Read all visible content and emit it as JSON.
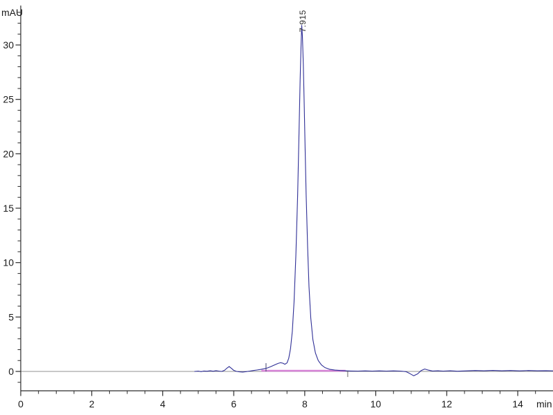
{
  "window": {
    "background": "#ffffff"
  },
  "chart_data": {
    "type": "line",
    "title": "",
    "subtitle": "",
    "ylabel": "mAU",
    "xlabel": "min",
    "legend_position": "none",
    "grid": "zero-line-only",
    "x_axis": {
      "range": [
        0,
        15.05
      ],
      "major_ticks": [
        0,
        2,
        4,
        6,
        8,
        10,
        12,
        14
      ],
      "minor_tick_step": 0.5,
      "unit_label": "min"
    },
    "y_axis": {
      "range": [
        -1.8,
        33.6
      ],
      "major_ticks": [
        0,
        5,
        10,
        15,
        20,
        25,
        30
      ],
      "minor_tick_step": 1,
      "minor_tick_range": [
        -1,
        33
      ],
      "unit_label": "mAU"
    },
    "peak": {
      "label": "7.915",
      "retention_time_min": 7.915,
      "apex_mAU": 31.8
    },
    "integration": {
      "baseline_start_min": 6.78,
      "baseline_end_min": 9.15,
      "baseline_level_mAU": 0.06,
      "start_tick_min": 6.91,
      "end_tick_min": 9.21
    },
    "series": [
      {
        "name": "detector-signal",
        "color": "#2e2e96",
        "points": [
          [
            4.9,
            0.0
          ],
          [
            5.0,
            0.03
          ],
          [
            5.08,
            -0.02
          ],
          [
            5.16,
            0.04
          ],
          [
            5.25,
            0.02
          ],
          [
            5.34,
            0.06
          ],
          [
            5.42,
            0.02
          ],
          [
            5.5,
            0.07
          ],
          [
            5.58,
            0.03
          ],
          [
            5.66,
            0.0
          ],
          [
            5.74,
            0.1
          ],
          [
            5.8,
            0.28
          ],
          [
            5.87,
            0.45
          ],
          [
            5.93,
            0.3
          ],
          [
            6.0,
            0.1
          ],
          [
            6.08,
            0.0
          ],
          [
            6.16,
            -0.04
          ],
          [
            6.25,
            -0.06
          ],
          [
            6.35,
            -0.02
          ],
          [
            6.45,
            0.03
          ],
          [
            6.55,
            0.08
          ],
          [
            6.65,
            0.13
          ],
          [
            6.75,
            0.18
          ],
          [
            6.85,
            0.24
          ],
          [
            6.95,
            0.32
          ],
          [
            7.05,
            0.45
          ],
          [
            7.15,
            0.6
          ],
          [
            7.25,
            0.74
          ],
          [
            7.32,
            0.8
          ],
          [
            7.38,
            0.76
          ],
          [
            7.44,
            0.66
          ],
          [
            7.5,
            0.78
          ],
          [
            7.55,
            1.2
          ],
          [
            7.6,
            2.1
          ],
          [
            7.65,
            3.7
          ],
          [
            7.7,
            6.4
          ],
          [
            7.75,
            10.6
          ],
          [
            7.8,
            16.2
          ],
          [
            7.84,
            22.0
          ],
          [
            7.87,
            26.8
          ],
          [
            7.895,
            29.9
          ],
          [
            7.915,
            31.8
          ],
          [
            7.935,
            30.8
          ],
          [
            7.96,
            28.2
          ],
          [
            7.985,
            24.5
          ],
          [
            8.01,
            20.5
          ],
          [
            8.04,
            16.2
          ],
          [
            8.08,
            11.5
          ],
          [
            8.12,
            7.8
          ],
          [
            8.17,
            4.9
          ],
          [
            8.23,
            2.9
          ],
          [
            8.3,
            1.7
          ],
          [
            8.38,
            1.0
          ],
          [
            8.47,
            0.6
          ],
          [
            8.57,
            0.35
          ],
          [
            8.7,
            0.2
          ],
          [
            8.85,
            0.12
          ],
          [
            9.0,
            0.08
          ],
          [
            9.15,
            0.06
          ],
          [
            9.3,
            0.04
          ],
          [
            9.5,
            0.03
          ],
          [
            9.7,
            0.05
          ],
          [
            9.9,
            0.03
          ],
          [
            10.1,
            0.05
          ],
          [
            10.3,
            0.03
          ],
          [
            10.5,
            0.05
          ],
          [
            10.7,
            0.03
          ],
          [
            10.85,
            -0.02
          ],
          [
            10.95,
            -0.18
          ],
          [
            11.07,
            -0.4
          ],
          [
            11.18,
            -0.22
          ],
          [
            11.28,
            0.08
          ],
          [
            11.38,
            0.22
          ],
          [
            11.48,
            0.12
          ],
          [
            11.6,
            0.04
          ],
          [
            11.75,
            0.06
          ],
          [
            11.9,
            0.03
          ],
          [
            12.1,
            0.06
          ],
          [
            12.3,
            0.02
          ],
          [
            12.55,
            0.05
          ],
          [
            12.8,
            0.08
          ],
          [
            13.05,
            0.06
          ],
          [
            13.3,
            0.09
          ],
          [
            13.55,
            0.06
          ],
          [
            13.8,
            0.08
          ],
          [
            14.05,
            0.05
          ],
          [
            14.3,
            0.08
          ],
          [
            14.55,
            0.06
          ],
          [
            14.8,
            0.07
          ],
          [
            15.0,
            0.05
          ]
        ]
      }
    ],
    "colors": {
      "axis": "#2b2b2b",
      "zero_line": "#909090",
      "tick_text": "#1a1a1a",
      "trace": "#2e2e96",
      "integration_baseline": "#d478d4",
      "integration_marker": "#44436f",
      "peak_label_text": "#2a2a2a"
    }
  }
}
